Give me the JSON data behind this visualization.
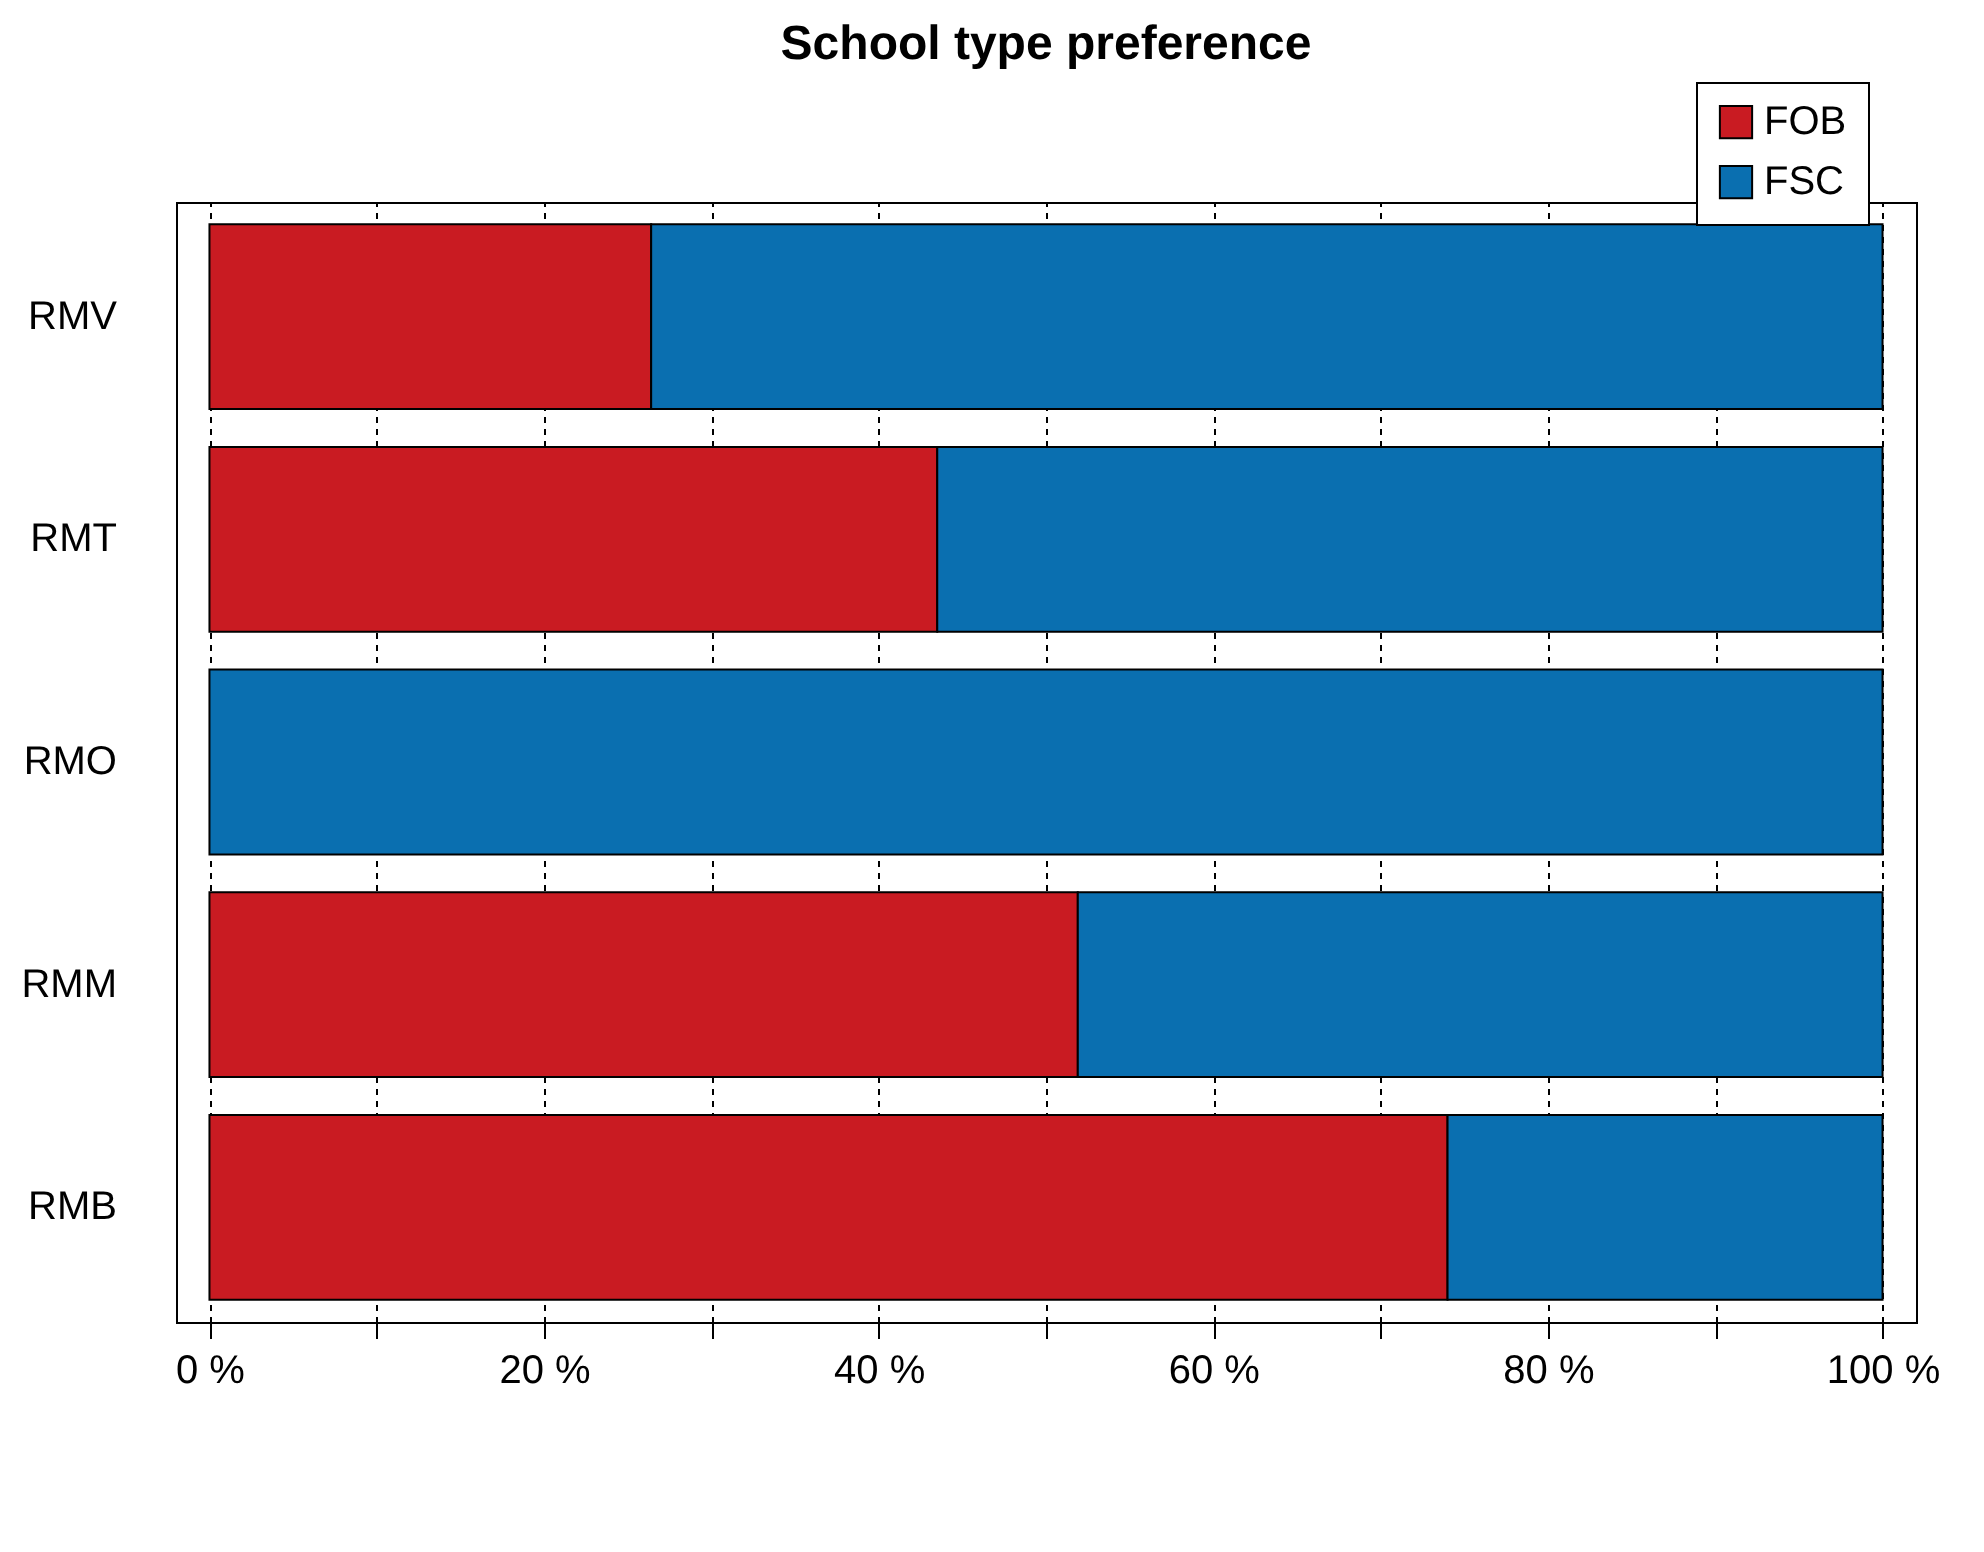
{
  "chart_data": {
    "type": "bar",
    "title": "School type preference",
    "orientation": "horizontal",
    "stacked": true,
    "categories": [
      "RMV",
      "RMT",
      "RMO",
      "RMM",
      "RMB"
    ],
    "series": [
      {
        "name": "FOB",
        "color": "#c91b22",
        "values": [
          26.4,
          43.5,
          null,
          51.9,
          74.0
        ]
      },
      {
        "name": "FSC",
        "color": "#0a6fb0",
        "values": [
          73.6,
          56.5,
          100,
          48.1,
          26.0
        ]
      }
    ],
    "xlim": [
      -2,
      102
    ],
    "xticks": [
      {
        "value": 0,
        "label": "0 %"
      },
      {
        "value": 10,
        "label": null
      },
      {
        "value": 20,
        "label": "20 %"
      },
      {
        "value": 30,
        "label": null
      },
      {
        "value": 40,
        "label": "40 %"
      },
      {
        "value": 50,
        "label": null
      },
      {
        "value": 60,
        "label": "60 %"
      },
      {
        "value": 70,
        "label": null
      },
      {
        "value": 80,
        "label": "80 %"
      },
      {
        "value": 90,
        "label": null
      },
      {
        "value": 100,
        "label": "100 %"
      }
    ],
    "grid": "x",
    "legend": "top right"
  }
}
